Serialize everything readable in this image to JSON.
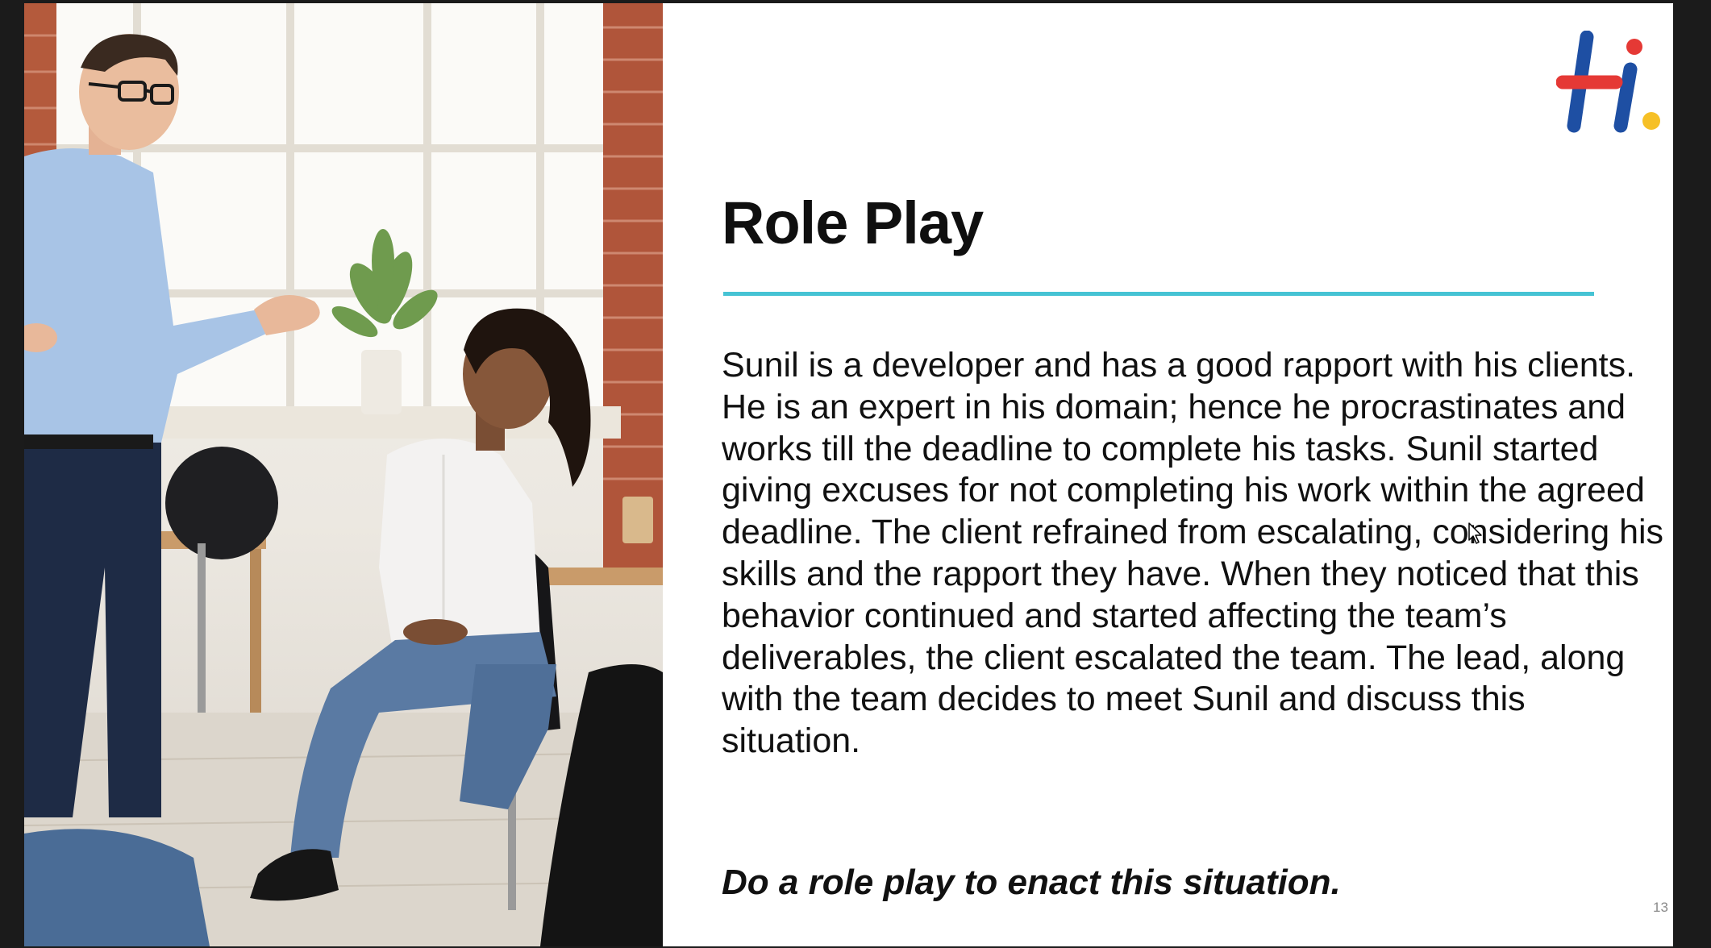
{
  "slide": {
    "title": "Role Play",
    "body": "Sunil is a developer and has a good rapport with his clients. He is an expert in his domain; hence he procrastinates and works till the deadline to complete his tasks. Sunil started giving excuses for not completing his work within the agreed deadline. The client refrained from escalating, considering his skills and the rapport they have. When they noticed that this behavior continued and started affecting the team’s deliverables, the client escalated the team. The lead, along with the team decides to meet Sunil and discuss this situation.",
    "instruction": "Do a role play to enact this situation.",
    "slide_number": "13"
  },
  "logo": {
    "icon": "hi-logo-icon",
    "colors": {
      "blue": "#1e4fa3",
      "red": "#e53935",
      "yellow": "#f6c026"
    }
  },
  "colors": {
    "accent_rule": "#46c3d4",
    "slide_background": "#ffffff",
    "frame_background": "#1b1b1b"
  }
}
